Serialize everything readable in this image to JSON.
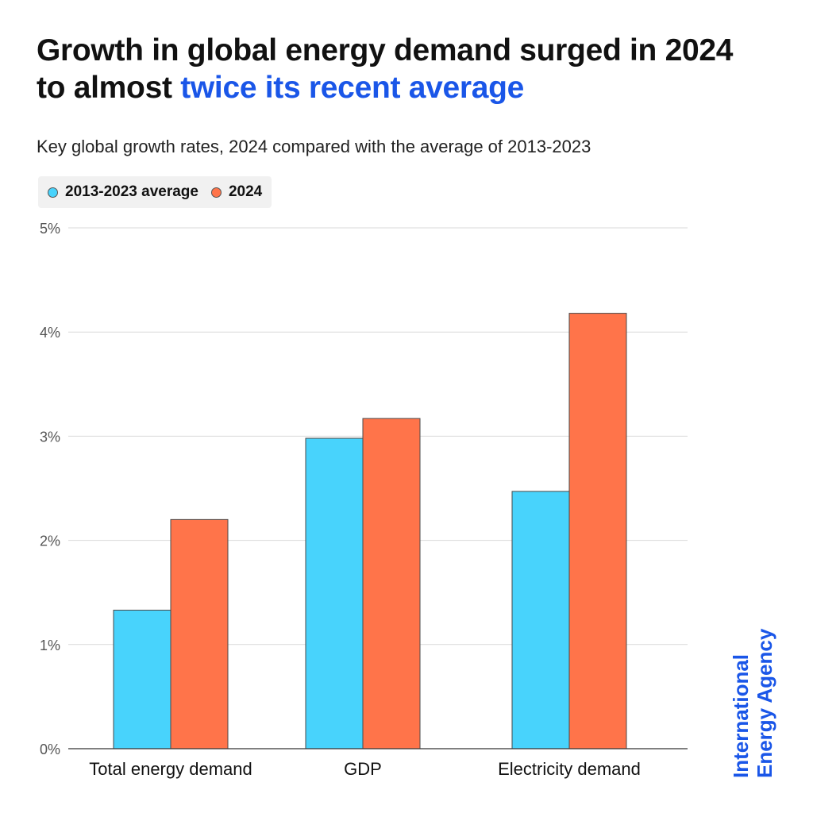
{
  "title": {
    "part1": "Growth in global energy demand surged in 2024 to almost ",
    "highlight": "twice its recent average"
  },
  "subtitle": "Key global growth rates, 2024 compared with the average of 2013-2023",
  "brand": {
    "line1": "International",
    "line2": "Energy Agency"
  },
  "colors": {
    "series_avg": "#48d3fc",
    "series_2024": "#ff744a",
    "accent": "#1a56e8"
  },
  "chart_data": {
    "type": "bar",
    "categories": [
      "Total energy demand",
      "GDP",
      "Electricity demand"
    ],
    "series": [
      {
        "name": "2013-2023 average",
        "color": "#48d3fc",
        "values": [
          1.33,
          2.98,
          2.47
        ]
      },
      {
        "name": "2024",
        "color": "#ff744a",
        "values": [
          2.2,
          3.17,
          4.18
        ]
      }
    ],
    "ylim": [
      0,
      5
    ],
    "yticks": [
      0,
      1,
      2,
      3,
      4,
      5
    ],
    "ytick_labels": [
      "0%",
      "1%",
      "2%",
      "3%",
      "4%",
      "5%"
    ],
    "grid": true,
    "legend": "top-left"
  }
}
